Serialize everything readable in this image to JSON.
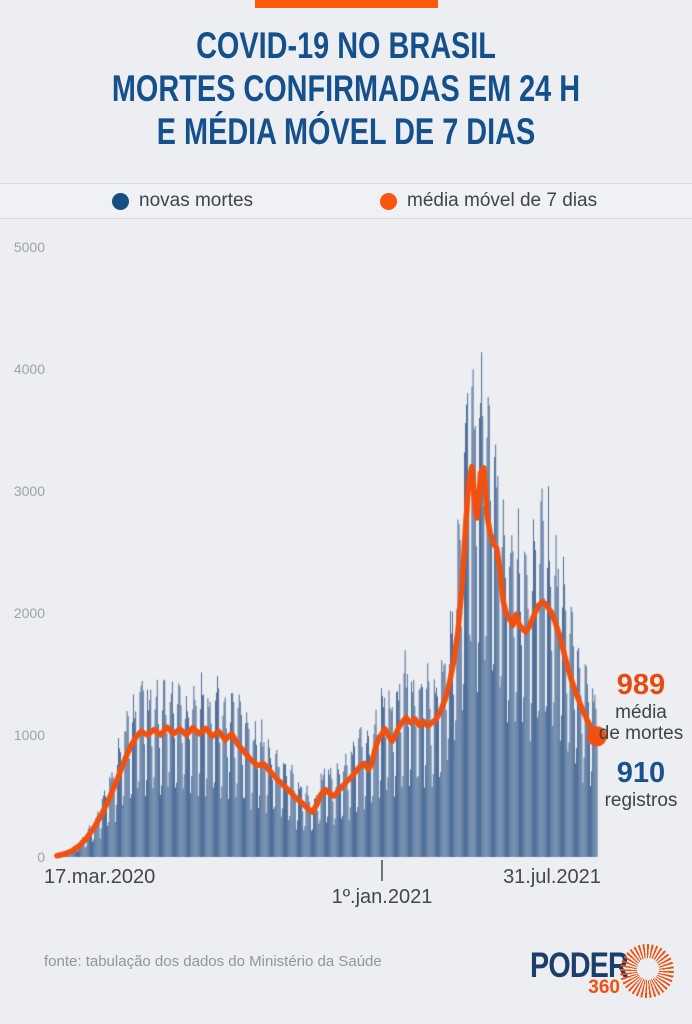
{
  "page": {
    "background": "#ECEEF1",
    "accent_bar_color": "#FF5A0C"
  },
  "header": {
    "title_lines": [
      "COVID-19 NO BRASIL",
      "MORTES CONFIRMADAS EM 24 H",
      "E MÉDIA MÓVEL DE 7 DIAS"
    ],
    "title_color": "#14508C"
  },
  "legend": {
    "items": [
      {
        "label": "novas mortes",
        "color": "#164E7F",
        "icon": "circle"
      },
      {
        "label": "média móvel de 7 dias",
        "color": "#FA560E",
        "icon": "circle"
      }
    ]
  },
  "chart_data": {
    "type": "bar",
    "title": "COVID-19 no Brasil: mortes confirmadas em 24 h e média móvel de 7 dias",
    "grid": false,
    "legend_position": "top",
    "ylim": [
      0,
      5000
    ],
    "y_ticks_top_to_bottom": [
      "5000",
      "4000",
      "3000",
      "2000",
      "1000",
      "0"
    ],
    "x_tick_labels": [
      "17.mar.2020",
      "1º.jan.2021",
      "31.jul.2021"
    ],
    "days_total": 502,
    "bar_color": "#2D5487",
    "line_color": "#F2500E",
    "series": [
      {
        "name": "novas mortes",
        "style": "bar",
        "derived_from": "média móvel de 7 dias"
      },
      {
        "name": "média móvel de 7 dias",
        "style": "line"
      }
    ],
    "avg_keypoints": [
      [
        0,
        10
      ],
      [
        7,
        25
      ],
      [
        14,
        50
      ],
      [
        21,
        95
      ],
      [
        28,
        160
      ],
      [
        35,
        250
      ],
      [
        42,
        360
      ],
      [
        49,
        490
      ],
      [
        56,
        640
      ],
      [
        63,
        800
      ],
      [
        68,
        900
      ],
      [
        73,
        980
      ],
      [
        78,
        1030
      ],
      [
        84,
        1000
      ],
      [
        90,
        1045
      ],
      [
        96,
        1000
      ],
      [
        102,
        1065
      ],
      [
        108,
        1010
      ],
      [
        114,
        1050
      ],
      [
        120,
        1000
      ],
      [
        126,
        1060
      ],
      [
        132,
        1010
      ],
      [
        138,
        1055
      ],
      [
        144,
        990
      ],
      [
        150,
        1030
      ],
      [
        156,
        960
      ],
      [
        162,
        1010
      ],
      [
        168,
        920
      ],
      [
        174,
        860
      ],
      [
        180,
        795
      ],
      [
        186,
        750
      ],
      [
        192,
        762
      ],
      [
        198,
        700
      ],
      [
        204,
        640
      ],
      [
        210,
        588
      ],
      [
        216,
        540
      ],
      [
        222,
        480
      ],
      [
        228,
        438
      ],
      [
        233,
        395
      ],
      [
        237,
        368
      ],
      [
        241,
        430
      ],
      [
        245,
        515
      ],
      [
        249,
        552
      ],
      [
        253,
        520
      ],
      [
        257,
        500
      ],
      [
        261,
        542
      ],
      [
        265,
        580
      ],
      [
        269,
        622
      ],
      [
        273,
        652
      ],
      [
        277,
        700
      ],
      [
        281,
        742
      ],
      [
        285,
        768
      ],
      [
        289,
        718
      ],
      [
        292,
        762
      ],
      [
        295,
        880
      ],
      [
        298,
        962
      ],
      [
        301,
        1002
      ],
      [
        304,
        1052
      ],
      [
        308,
        988
      ],
      [
        311,
        948
      ],
      [
        314,
        1000
      ],
      [
        317,
        1062
      ],
      [
        320,
        1102
      ],
      [
        324,
        1142
      ],
      [
        328,
        1100
      ],
      [
        332,
        1132
      ],
      [
        336,
        1080
      ],
      [
        340,
        1112
      ],
      [
        344,
        1072
      ],
      [
        348,
        1102
      ],
      [
        352,
        1132
      ],
      [
        356,
        1200
      ],
      [
        360,
        1290
      ],
      [
        364,
        1420
      ],
      [
        368,
        1600
      ],
      [
        372,
        1850
      ],
      [
        376,
        2250
      ],
      [
        379,
        2700
      ],
      [
        382,
        3080
      ],
      [
        385,
        3200
      ],
      [
        388,
        2850
      ],
      [
        390,
        2780
      ],
      [
        393,
        3150
      ],
      [
        396,
        3190
      ],
      [
        399,
        2800
      ],
      [
        402,
        2650
      ],
      [
        405,
        2570
      ],
      [
        408,
        2530
      ],
      [
        411,
        2350
      ],
      [
        414,
        2100
      ],
      [
        417,
        1990
      ],
      [
        420,
        1950
      ],
      [
        423,
        1900
      ],
      [
        426,
        1990
      ],
      [
        429,
        1900
      ],
      [
        432,
        1870
      ],
      [
        435,
        1845
      ],
      [
        438,
        1885
      ],
      [
        441,
        1950
      ],
      [
        444,
        2012
      ],
      [
        447,
        2062
      ],
      [
        450,
        2090
      ],
      [
        453,
        2078
      ],
      [
        456,
        2040
      ],
      [
        459,
        2000
      ],
      [
        462,
        1930
      ],
      [
        465,
        1850
      ],
      [
        468,
        1760
      ],
      [
        471,
        1650
      ],
      [
        474,
        1550
      ],
      [
        477,
        1460
      ],
      [
        480,
        1380
      ],
      [
        483,
        1310
      ],
      [
        486,
        1240
      ],
      [
        489,
        1180
      ],
      [
        492,
        1120
      ],
      [
        495,
        1070
      ],
      [
        498,
        1020
      ],
      [
        501,
        989
      ]
    ],
    "weekday_factors_sun_to_sat": [
      0.52,
      0.62,
      1.22,
      1.32,
      1.28,
      1.18,
      0.92
    ],
    "start_weekday_offset": 2,
    "noise": {
      "base": 0.9,
      "range": 0.24
    },
    "soft_cap": 3600,
    "soft_cap_slope": 0.55,
    "hard_cap": 4260,
    "last_bar_value": 910,
    "annotations": {
      "avg": {
        "value": "989",
        "label_lines": [
          "média",
          "de mortes"
        ],
        "color": "#E8490D"
      },
      "bars": {
        "value": "910",
        "label_lines": [
          "registros"
        ],
        "color": "#1A5290"
      }
    }
  },
  "footer": {
    "source": "fonte: tabulação dos dados do Ministério da Saúde",
    "logo": {
      "text": "PODER",
      "sub": "360",
      "navy": "#1C3E6B",
      "orange": "#F2500E",
      "icon": "sunburst"
    }
  }
}
